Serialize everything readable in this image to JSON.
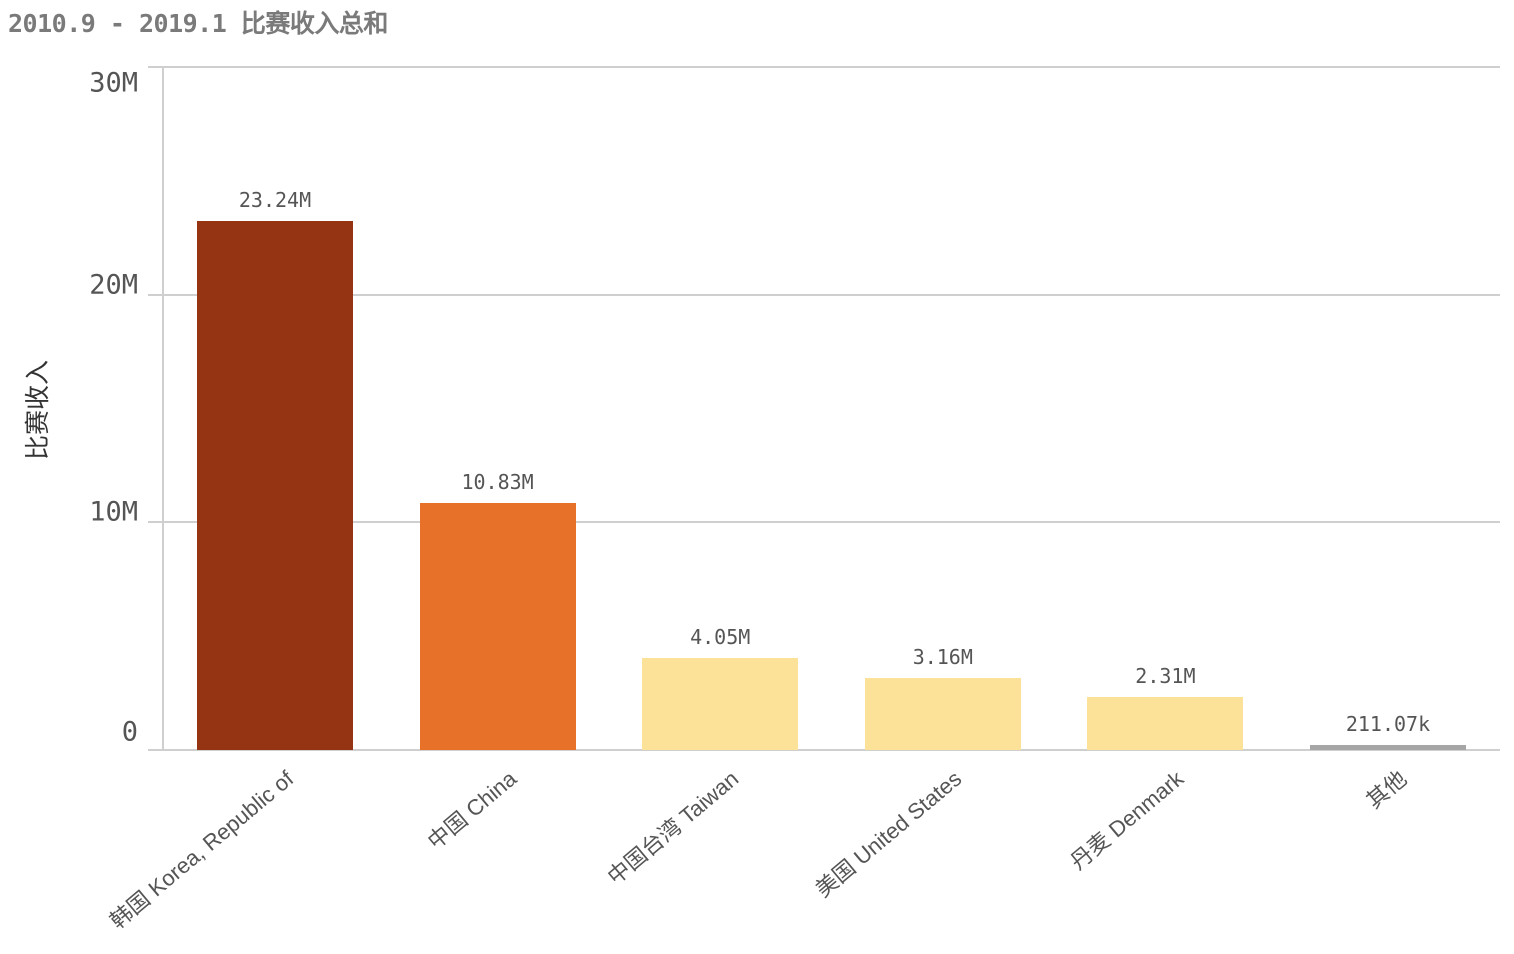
{
  "header": {
    "title": "2010.9 - 2019.1 比赛收入总和"
  },
  "chart_data": {
    "type": "bar",
    "title": "2010.9 - 2019.1 比赛收入总和",
    "xlabel": "",
    "ylabel": "比赛收入",
    "ylim": [
      0,
      30000000
    ],
    "yticks": [
      {
        "value": 0,
        "label": "0"
      },
      {
        "value": 10000000,
        "label": "10M"
      },
      {
        "value": 20000000,
        "label": "20M"
      },
      {
        "value": 30000000,
        "label": "30M"
      }
    ],
    "grid": true,
    "legend": null,
    "categories": [
      "韩国 Korea, Republic of",
      "中国 China",
      "中国台湾 Taiwan",
      "美国 United States",
      "丹麦 Denmark",
      "其他"
    ],
    "values": [
      23240000,
      10830000,
      4050000,
      3160000,
      2310000,
      211070
    ],
    "value_labels": [
      "23.24M",
      "10.83M",
      "4.05M",
      "3.16M",
      "2.31M",
      "211.07k"
    ],
    "colors": [
      "#953412",
      "#E8712A",
      "#FCE198",
      "#FCE198",
      "#FCE198",
      "#A6A6A6"
    ]
  },
  "colors": {
    "gridline": "#CFCFCF",
    "axis_text": "#555555",
    "title_text": "#7A7A7A"
  }
}
